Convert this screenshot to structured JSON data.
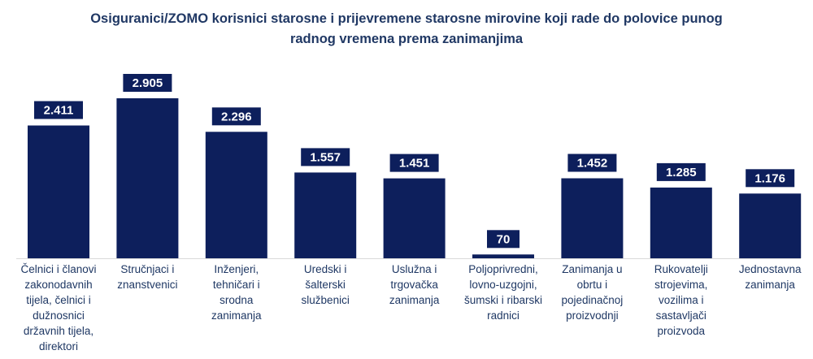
{
  "chart_data": {
    "type": "bar",
    "title_line1": "Osiguranici/ZOMO korisnici starosne i prijevremene starosne mirovine koji rade do polovice punog",
    "title_line2": "radnog vremena prema zanimanjima",
    "categories": [
      [
        "Čelnici i članovi",
        "zakonodavnih",
        "tijela, čelnici i",
        "dužnosnici",
        "državnih tijela,",
        "direktori"
      ],
      [
        "Stručnjaci i",
        "znanstvenici"
      ],
      [
        "Inženjeri,",
        "tehničari i srodna",
        "zanimanja"
      ],
      [
        "Uredski i šalterski",
        "službenici"
      ],
      [
        "Uslužna i",
        "trgovačka",
        "zanimanja"
      ],
      [
        "Poljoprivredni,",
        "lovno-uzgojni,",
        "šumski i ribarski",
        "radnici"
      ],
      [
        "Zanimanja u",
        "obrtu i",
        "pojedinačnoj",
        "proizvodnji"
      ],
      [
        "Rukovatelji",
        "strojevima,",
        "vozilima i",
        "sastavljači",
        "proizvoda"
      ],
      [
        "Jednostavna",
        "zanimanja"
      ]
    ],
    "values": [
      2411,
      2905,
      2296,
      1557,
      1451,
      70,
      1452,
      1285,
      1176
    ],
    "value_labels": [
      "2.411",
      "2.905",
      "2.296",
      "1.557",
      "1.451",
      "70",
      "1.452",
      "1.285",
      "1.176"
    ],
    "ylim": [
      0,
      2905
    ],
    "grid": false,
    "colors": {
      "bar": "#0d1f5c",
      "label_text": "#1f3864",
      "title": "#203864"
    }
  }
}
